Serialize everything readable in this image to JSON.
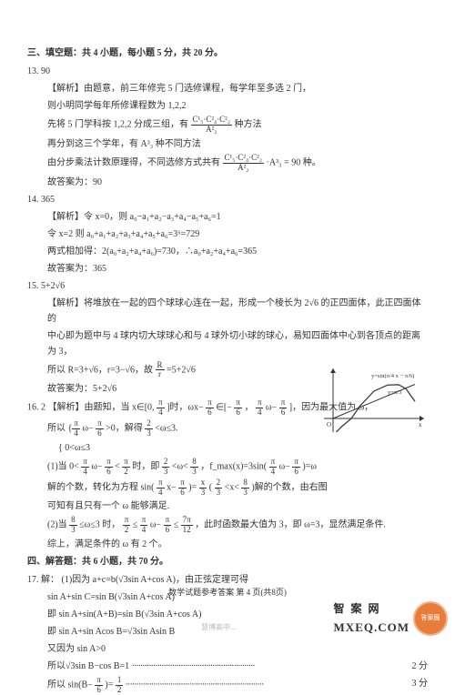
{
  "section": {
    "title": "三、填空题：共 4 小题，每小题 5 分，共 20 分。"
  },
  "q13": {
    "num": "13. 90",
    "a1": "【解析】由题意，前三年修完 5 门选修课程，每学年至多选 2 门，",
    "a2": "则小明同学每年所修课程数为 1,2,2",
    "a3_pre": "先将 5 门学科按 1,2,2 分成三组，有",
    "a3_frac_num": "C¹₅·C²₄·C²₂",
    "a3_frac_den": "A²₂",
    "a3_post": "种方法",
    "a4": "再分到这三个学年，有 A³₃ 种不同方法",
    "a5_pre": "由分步乘法计数原理得，不同选修方式共有",
    "a5_frac_num": "C¹₅·C²₄·C²₂",
    "a5_frac_den": "A²₂",
    "a5_post": "·A³₃ = 90 种。",
    "ans": "故答案为：90"
  },
  "q14": {
    "num": "14. 365",
    "a1": "【解析】令 x=0，则 a₀−a₁+a₂−a₃+a₄−a₅+a₆=1",
    "a2": "令 x=2 则 a₀+a₁+a₂+a₃+a₄+a₅+a₆=3⁶=729",
    "a3": "两式相加得：2(a₀+a₂+a₄+a₆)=730，∴a₀+a₂+a₄+a₆=365",
    "ans": "故答案为：365"
  },
  "q15": {
    "num": "15. 5+2√6",
    "a1": "【解析】将堆放在一起的四个球球心连在一起，形成一个棱长为 2√6 的正四面体，此正四面体的",
    "a2": "中心即为题中与 4 球内切大球球心和与 4 球外切小球的球心，易知四面体中心到各顶点的距离为 3，",
    "a3_pre": "所以 R=3+√6，r=3−√6，故",
    "a3_frac_num": "R",
    "a3_frac_den": "r",
    "a3_post": "=5+2√6",
    "ans": "故答案为：5+2√6"
  },
  "q16": {
    "num": "16. 2",
    "a1_pre": "【解析】由题知，当 x∈[0,",
    "a1_f1n": "π",
    "a1_f1d": "4",
    "a1_mid": "]时，ωx−",
    "a1_f2n": "π",
    "a1_f2d": "6",
    "a1_mid2": "∈[−",
    "a1_f3n": "π",
    "a1_f3d": "6",
    "a1_mid3": "，",
    "a1_f4n": "π",
    "a1_f4d": "4",
    "a1_post": "ω−",
    "a1_f5n": "π",
    "a1_f5d": "6",
    "a1_end": "]，因为最大值为 ω，",
    "a2_pre": "所以",
    "a2_f1n": "π",
    "a2_f1d": "4",
    "a2_mid": "ω−",
    "a2_f2n": "π",
    "a2_f2d": "6",
    "a2_post": ">0，解得",
    "a2_f3n": "2",
    "a2_f3d": "3",
    "a2_end": "<ω≤3.",
    "a2b": "{ 0<ω≤3",
    "a3_pre": "(1)当 0<",
    "a3_f1n": "π",
    "a3_f1d": "4",
    "a3_m1": "ω−",
    "a3_f2n": "π",
    "a3_f2d": "6",
    "a3_m2": "<",
    "a3_f3n": "π",
    "a3_f3d": "2",
    "a3_m3": "时，即",
    "a3_f4n": "2",
    "a3_f4d": "3",
    "a3_m4": "<ω<",
    "a3_f5n": "8",
    "a3_f5d": "3",
    "a3_m5": "，f_max(x)=3sin(",
    "a3_f6n": "π",
    "a3_f6d": "4",
    "a3_m6": "ω−",
    "a3_f7n": "π",
    "a3_f7d": "6",
    "a3_end": ")=ω",
    "a4_pre": "解的个数，转化为方程 sin(",
    "a4_f1n": "π",
    "a4_f1d": "4",
    "a4_m": "x−",
    "a4_f2n": "π",
    "a4_f2d": "6",
    "a4_m2": ")=",
    "a4_f3n": "x",
    "a4_f3d": "3",
    "a4_m3": "(",
    "a4_f4n": "2",
    "a4_f4d": "3",
    "a4_m4": "<x<",
    "a4_f5n": "8",
    "a4_f5d": "3",
    "a4_end": ")解的个数，由右图",
    "a5": "可知有且只有一个 ω 能够满足.",
    "a6_pre": "(2)当",
    "a6_f1n": "8",
    "a6_f1d": "3",
    "a6_m1": "≤ω≤3 时，",
    "a6_f2n": "π",
    "a6_f2d": "2",
    "a6_m2": "≤",
    "a6_f3n": "π",
    "a6_f3d": "4",
    "a6_m3": "ω−",
    "a6_f4n": "π",
    "a6_f4d": "6",
    "a6_m4": "≤",
    "a6_f5n": "7π",
    "a6_f5d": "12",
    "a6_end": "，此时函数最大值为 3，即 ω=3，显然满足条件.",
    "a7": "综上，满足条件的 ω 有 2 个。"
  },
  "section4": {
    "title": "四、解答题：共 6 小题，共 70 分。"
  },
  "q17": {
    "num": "17. 解：",
    "a1": "(1)因为 a+c=b(√3sin A+cos A)，由正弦定理可得",
    "a2": "sin A+sin C=sin B(√3sin A+cos A)",
    "a3": "即 sin A+sin(A+B)=sin B(√3sin A+cos A)",
    "a4": "即 sin A+sin Acos B=√3sin Asin B",
    "a5": "又因为 sin A>0",
    "a6": "所以√3sin B−cos B=1",
    "a6pts": "2 分",
    "a7_pre": "所以 sin(B−",
    "a7_f1n": "π",
    "a7_f1d": "6",
    "a7_m": ")=",
    "a7_f2n": "1",
    "a7_f2d": "2",
    "a7pts": "3 分"
  },
  "footer": {
    "text": "数学试题参考答案  第 4 页(共8页)"
  },
  "watermarks": {
    "wechat": "慧博高中...",
    "badge": "答案圈",
    "mx": "MXEQ.COM"
  },
  "chart": {
    "type": "line",
    "width": 110,
    "height": 70,
    "bg": "#ffffff",
    "axis_color": "#333333",
    "curve1_label": "y=sin(π/4 x − π/6)",
    "curve2_label": "y=x/3",
    "label_fontsize": 7,
    "origin_label": "O",
    "x_label": "x",
    "curve_color": "#333333",
    "line_width": 1.2,
    "sine": [
      [
        0,
        -0.5
      ],
      [
        0.3,
        -0.25
      ],
      [
        0.67,
        0.0
      ],
      [
        1.0,
        0.38
      ],
      [
        1.5,
        0.8
      ],
      [
        2.0,
        0.98
      ],
      [
        2.4,
        0.99
      ],
      [
        2.67,
        0.87
      ],
      [
        3.0,
        0.5
      ]
    ],
    "line": [
      [
        0,
        0
      ],
      [
        3,
        1
      ]
    ]
  }
}
